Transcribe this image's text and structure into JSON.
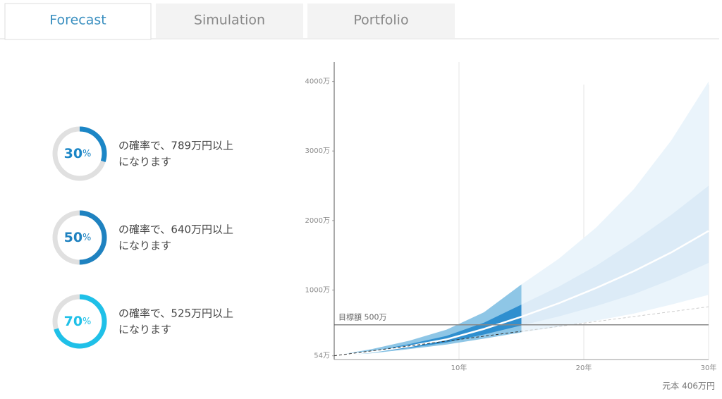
{
  "tabs": [
    {
      "label": "Forecast",
      "active": true
    },
    {
      "label": "Simulation",
      "active": false
    },
    {
      "label": "Portfolio",
      "active": false
    }
  ],
  "percent_unit": "%",
  "probabilities": [
    {
      "percent": 30,
      "color": "#1b86c6",
      "line1": "の確率で、789万円以上",
      "line2": "になります"
    },
    {
      "percent": 50,
      "color": "#1f82c0",
      "line1": "の確率で、640万円以上",
      "line2": "になります"
    },
    {
      "percent": 70,
      "color": "#1fc0e8",
      "line1": "の確率で、525万円以上",
      "line2": "になります"
    }
  ],
  "chart_data": {
    "type": "band",
    "xlim": [
      0,
      30
    ],
    "xticks": [
      {
        "value": 10,
        "label": "10年"
      },
      {
        "value": 20,
        "label": "20年"
      },
      {
        "value": 30,
        "label": "30年"
      }
    ],
    "ylim": [
      0,
      4280
    ],
    "yticks": [
      {
        "value": 54,
        "label": "54万"
      },
      {
        "value": 1000,
        "label": "1000万"
      },
      {
        "value": 2000,
        "label": "2000万"
      },
      {
        "value": 3000,
        "label": "3000万"
      },
      {
        "value": 4000,
        "label": "4000万"
      }
    ],
    "split_x": 15,
    "x": [
      0,
      3,
      6,
      9,
      12,
      15,
      18,
      21,
      24,
      27,
      30
    ],
    "bands": [
      {
        "upper": [
          54,
          150,
          270,
          430,
          680,
          1080,
          1450,
          1900,
          2450,
          3150,
          4000
        ],
        "lower": [
          54,
          90,
          150,
          215,
          300,
          390,
          470,
          560,
          660,
          790,
          930
        ],
        "color": "#8ec6e6",
        "future_color": "#eaf4fb"
      },
      {
        "upper": [
          54,
          120,
          220,
          340,
          530,
          790,
          1050,
          1350,
          1700,
          2080,
          2500
        ],
        "lower": [
          54,
          100,
          165,
          245,
          360,
          490,
          620,
          770,
          940,
          1150,
          1390
        ],
        "color": "#2f8fcf",
        "future_color": "#dcebf7"
      }
    ],
    "median": {
      "values": [
        54,
        110,
        190,
        290,
        440,
        615,
        810,
        1030,
        1270,
        1540,
        1850
      ],
      "color": "#ffffff"
    },
    "principal": {
      "x": [
        0,
        15,
        30
      ],
      "values": [
        54,
        406,
        759
      ],
      "label": "元本 406万円"
    },
    "target": {
      "value": 500,
      "label": "目標額 500万"
    }
  }
}
